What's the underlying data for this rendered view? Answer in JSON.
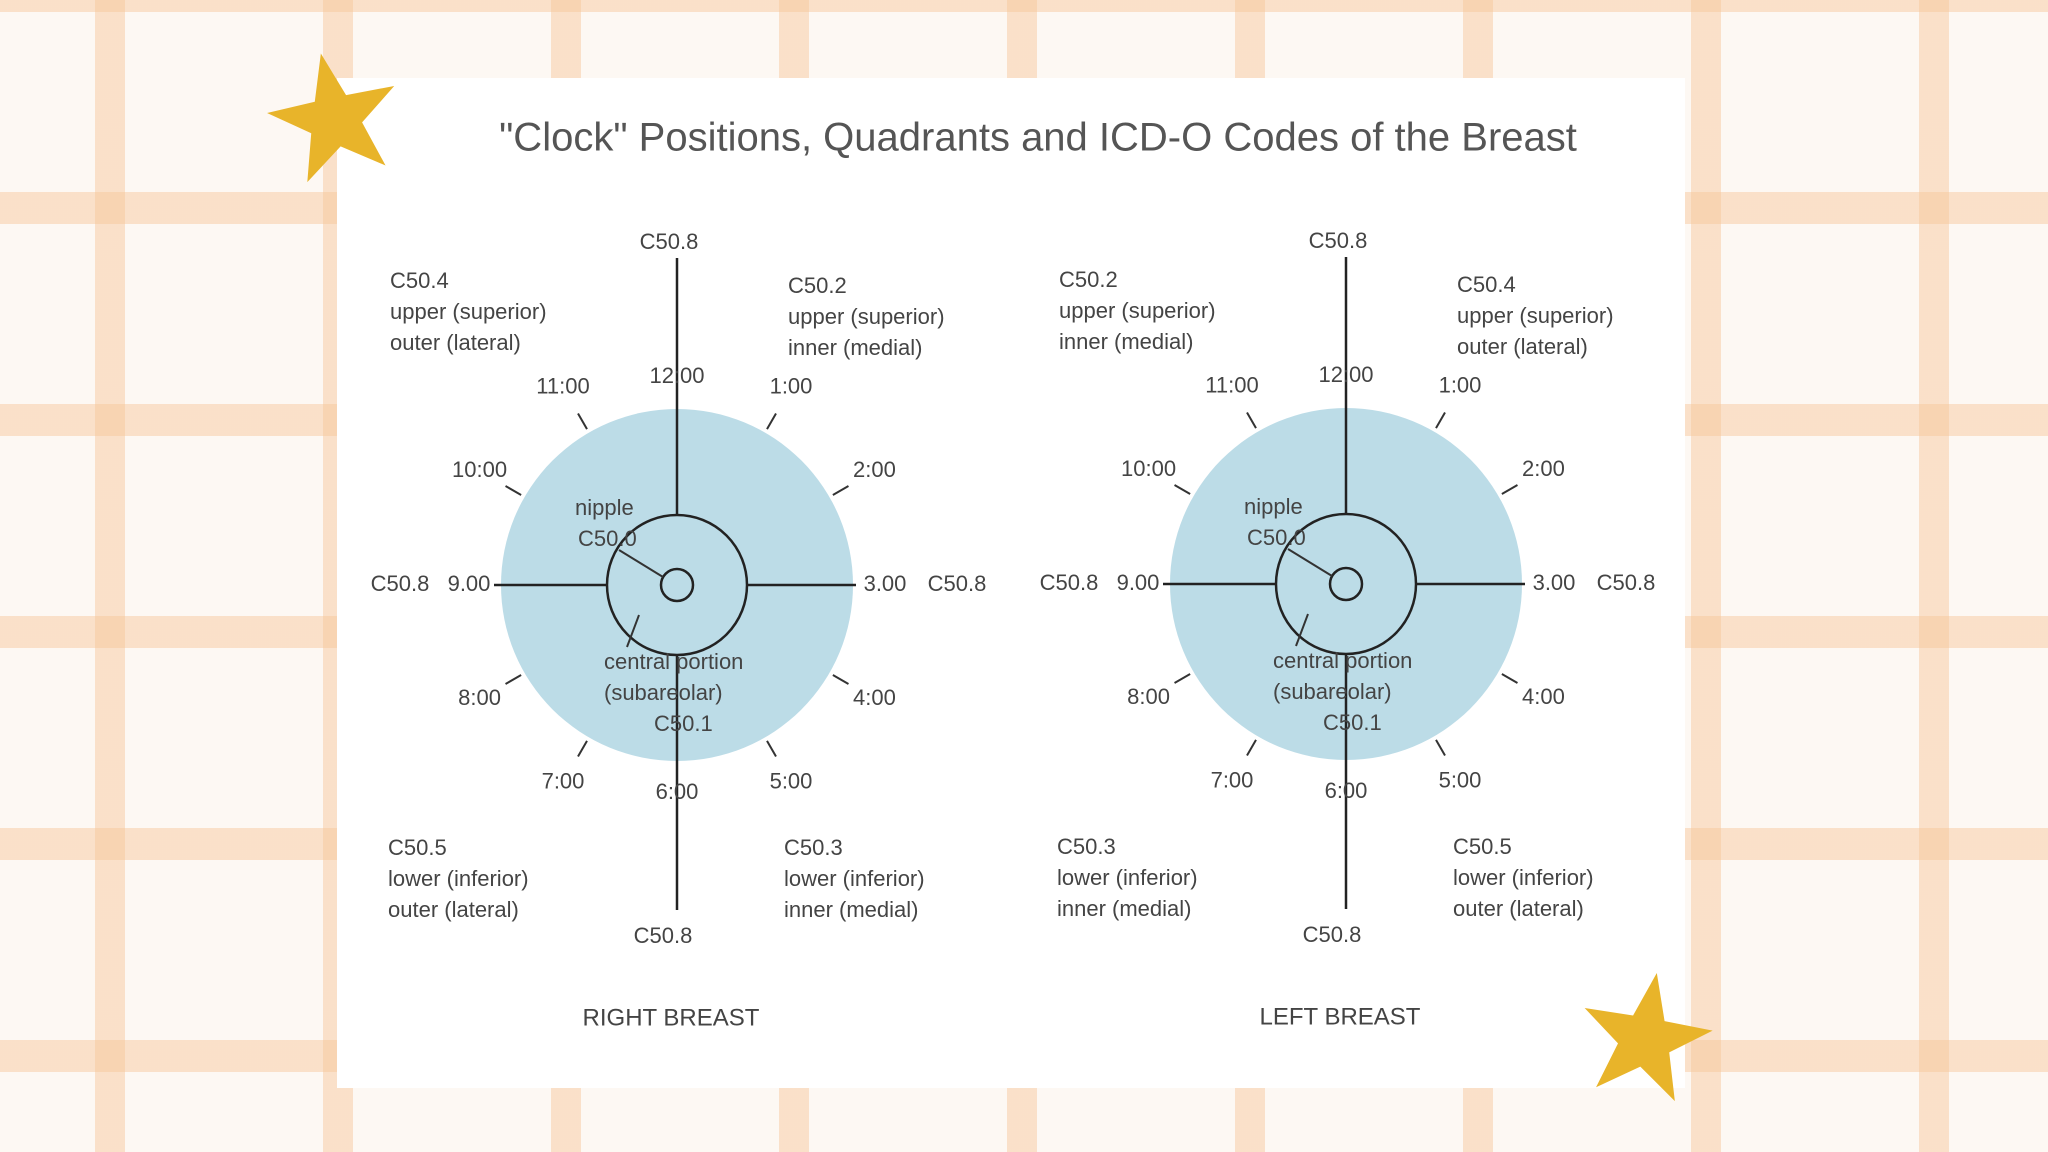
{
  "title": "\"Clock\" Positions, Quadrants and ICD-O Codes of the Breast",
  "diagrams": [
    {
      "caption": "RIGHT BREAST",
      "axis_codes": {
        "top": "C50.8",
        "bottom": "C50.8",
        "left": "C50.8",
        "right": "C50.8"
      },
      "clock": [
        "12:00",
        "1:00",
        "2:00",
        "3.00",
        "4:00",
        "5:00",
        "6:00",
        "7:00",
        "8:00",
        "9.00",
        "10:00",
        "11:00"
      ],
      "quadrants": [
        {
          "code": "C50.4",
          "lines": [
            "upper (superior)",
            "outer (lateral)"
          ]
        },
        {
          "code": "C50.2",
          "lines": [
            "upper (superior)",
            "inner (medial)"
          ]
        },
        {
          "code": "C50.5",
          "lines": [
            "lower (inferior)",
            "outer (lateral)"
          ]
        },
        {
          "code": "C50.3",
          "lines": [
            "lower (inferior)",
            "inner (medial)"
          ]
        }
      ],
      "nipple": [
        "nipple",
        "C50.0"
      ],
      "central": [
        "central portion",
        "(subareolar)",
        "C50.1"
      ]
    },
    {
      "caption": "LEFT BREAST",
      "axis_codes": {
        "top": "C50.8",
        "bottom": "C50.8",
        "left": "C50.8",
        "right": "C50.8"
      },
      "clock": [
        "12:00",
        "1:00",
        "2:00",
        "3.00",
        "4:00",
        "5:00",
        "6:00",
        "7:00",
        "8:00",
        "9.00",
        "10:00",
        "11:00"
      ],
      "quadrants": [
        {
          "code": "C50.2",
          "lines": [
            "upper (superior)",
            "inner (medial)"
          ]
        },
        {
          "code": "C50.4",
          "lines": [
            "upper (superior)",
            "outer (lateral)"
          ]
        },
        {
          "code": "C50.3",
          "lines": [
            "lower (inferior)",
            "inner (medial)"
          ]
        },
        {
          "code": "C50.5",
          "lines": [
            "lower (inferior)",
            "outer (lateral)"
          ]
        }
      ],
      "nipple": [
        "nipple",
        "C50.0"
      ],
      "central": [
        "central portion",
        "(subareolar)",
        "C50.1"
      ]
    }
  ]
}
